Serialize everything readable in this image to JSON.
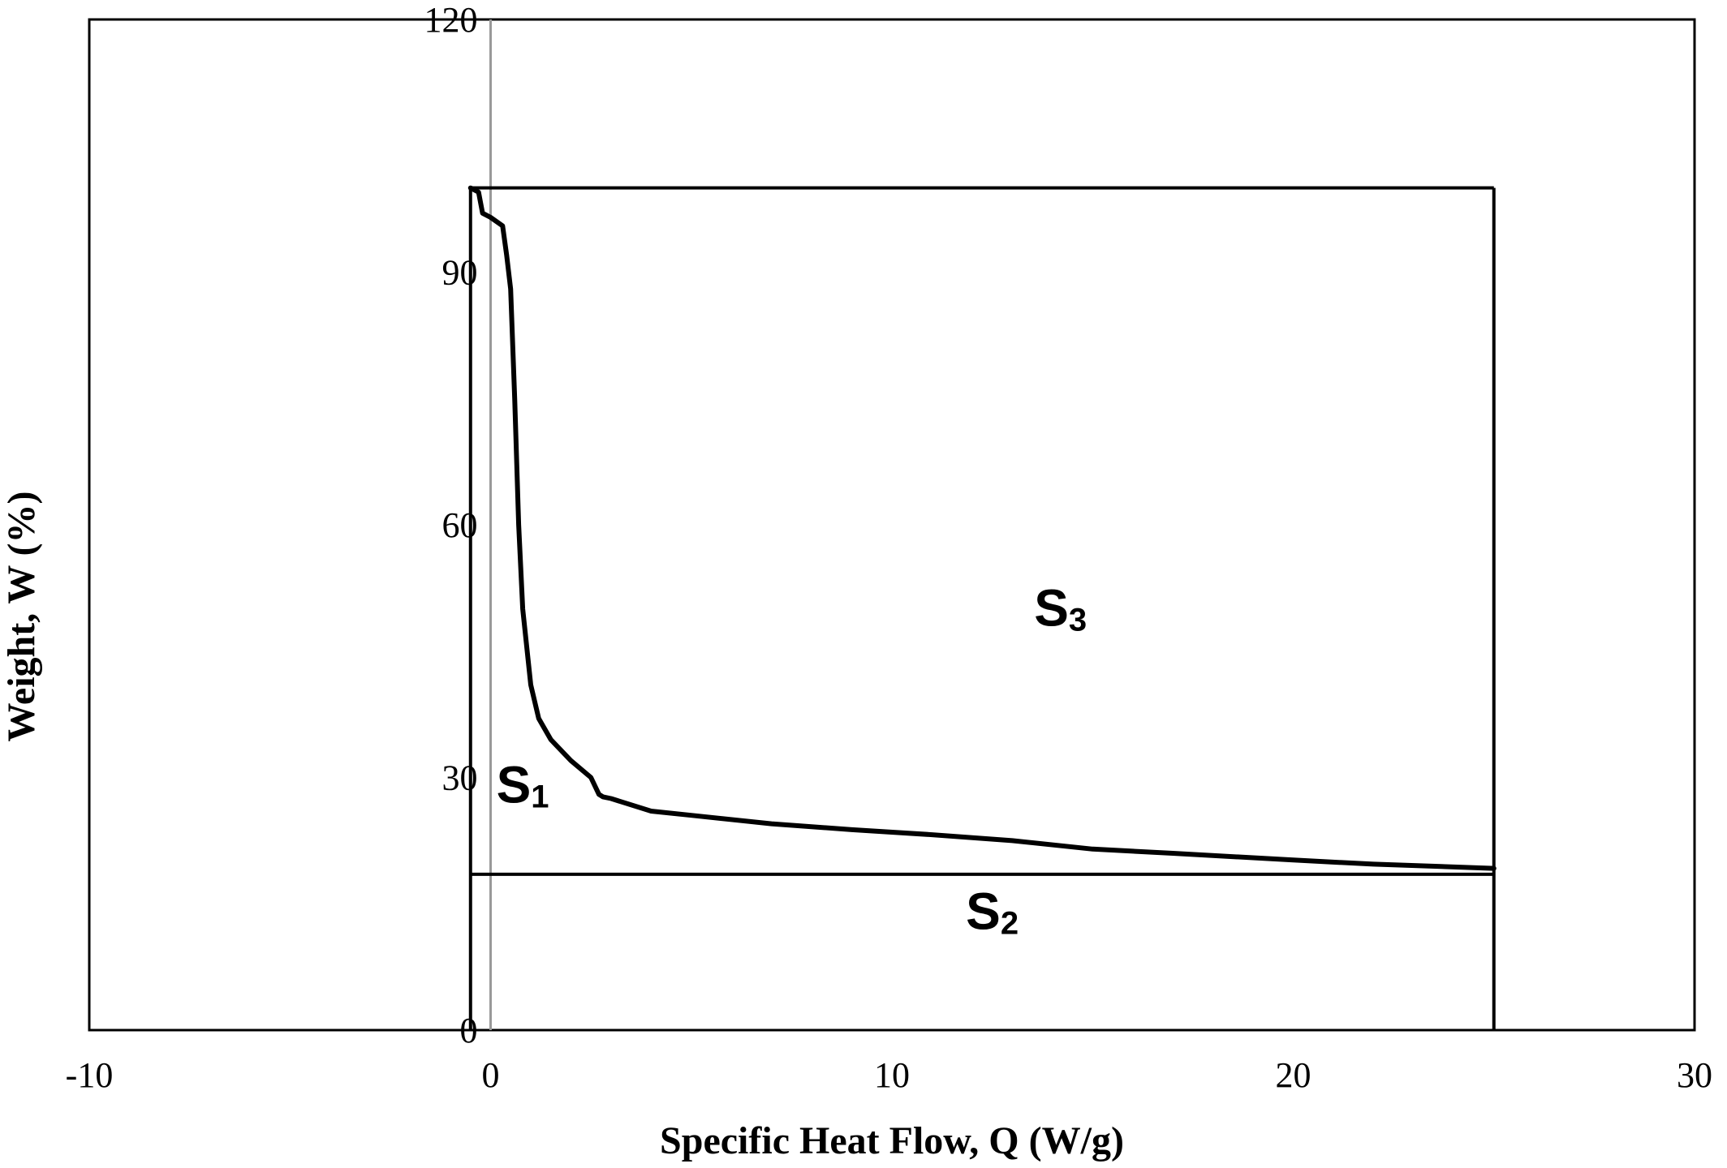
{
  "chart_data": {
    "type": "line",
    "title": "",
    "xlabel": "Specific Heat Flow, Q (W/g)",
    "ylabel": "Weight, W (%)",
    "xlim": [
      -10,
      30
    ],
    "ylim": [
      0,
      120
    ],
    "x_ticks": [
      -10,
      0,
      10,
      20,
      30
    ],
    "x_tick_labels": [
      "-10",
      "0",
      "10",
      "20",
      "30"
    ],
    "y_ticks": [
      0,
      30,
      60,
      90,
      120
    ],
    "y_tick_labels": [
      "0",
      "30",
      "60",
      "90",
      "120"
    ],
    "grid": false,
    "series": [
      {
        "x": [
          -0.5,
          -0.3,
          -0.2,
          0.0,
          0.3,
          0.4,
          0.5,
          0.6,
          0.7,
          0.8,
          1.0,
          1.2,
          1.5,
          2.0,
          2.5,
          2.7,
          2.8,
          3.0,
          4.0,
          5.0,
          7.0,
          9.0,
          11.0,
          13.0,
          15.0,
          17.0,
          20.0,
          22.0,
          25.0
        ],
        "y": [
          100,
          99.5,
          97,
          96.5,
          95.5,
          92,
          88,
          75,
          60,
          50,
          41,
          37,
          34.5,
          32,
          30,
          28,
          27.7,
          27.5,
          26,
          25.5,
          24.5,
          23.8,
          23.2,
          22.5,
          21.5,
          21,
          20.2,
          19.7,
          19.2
        ]
      }
    ],
    "annotations": [
      {
        "main": "S",
        "sub": "1",
        "x": 0.8,
        "y": 27
      },
      {
        "main": "S",
        "sub": "2",
        "x": 12.5,
        "y": 12
      },
      {
        "main": "S",
        "sub": "3",
        "x": 14.2,
        "y": 48
      }
    ],
    "boundaries": {
      "top_y": 100,
      "bottom_y": 18.5,
      "left_x": -0.5,
      "right_x": 25
    }
  }
}
